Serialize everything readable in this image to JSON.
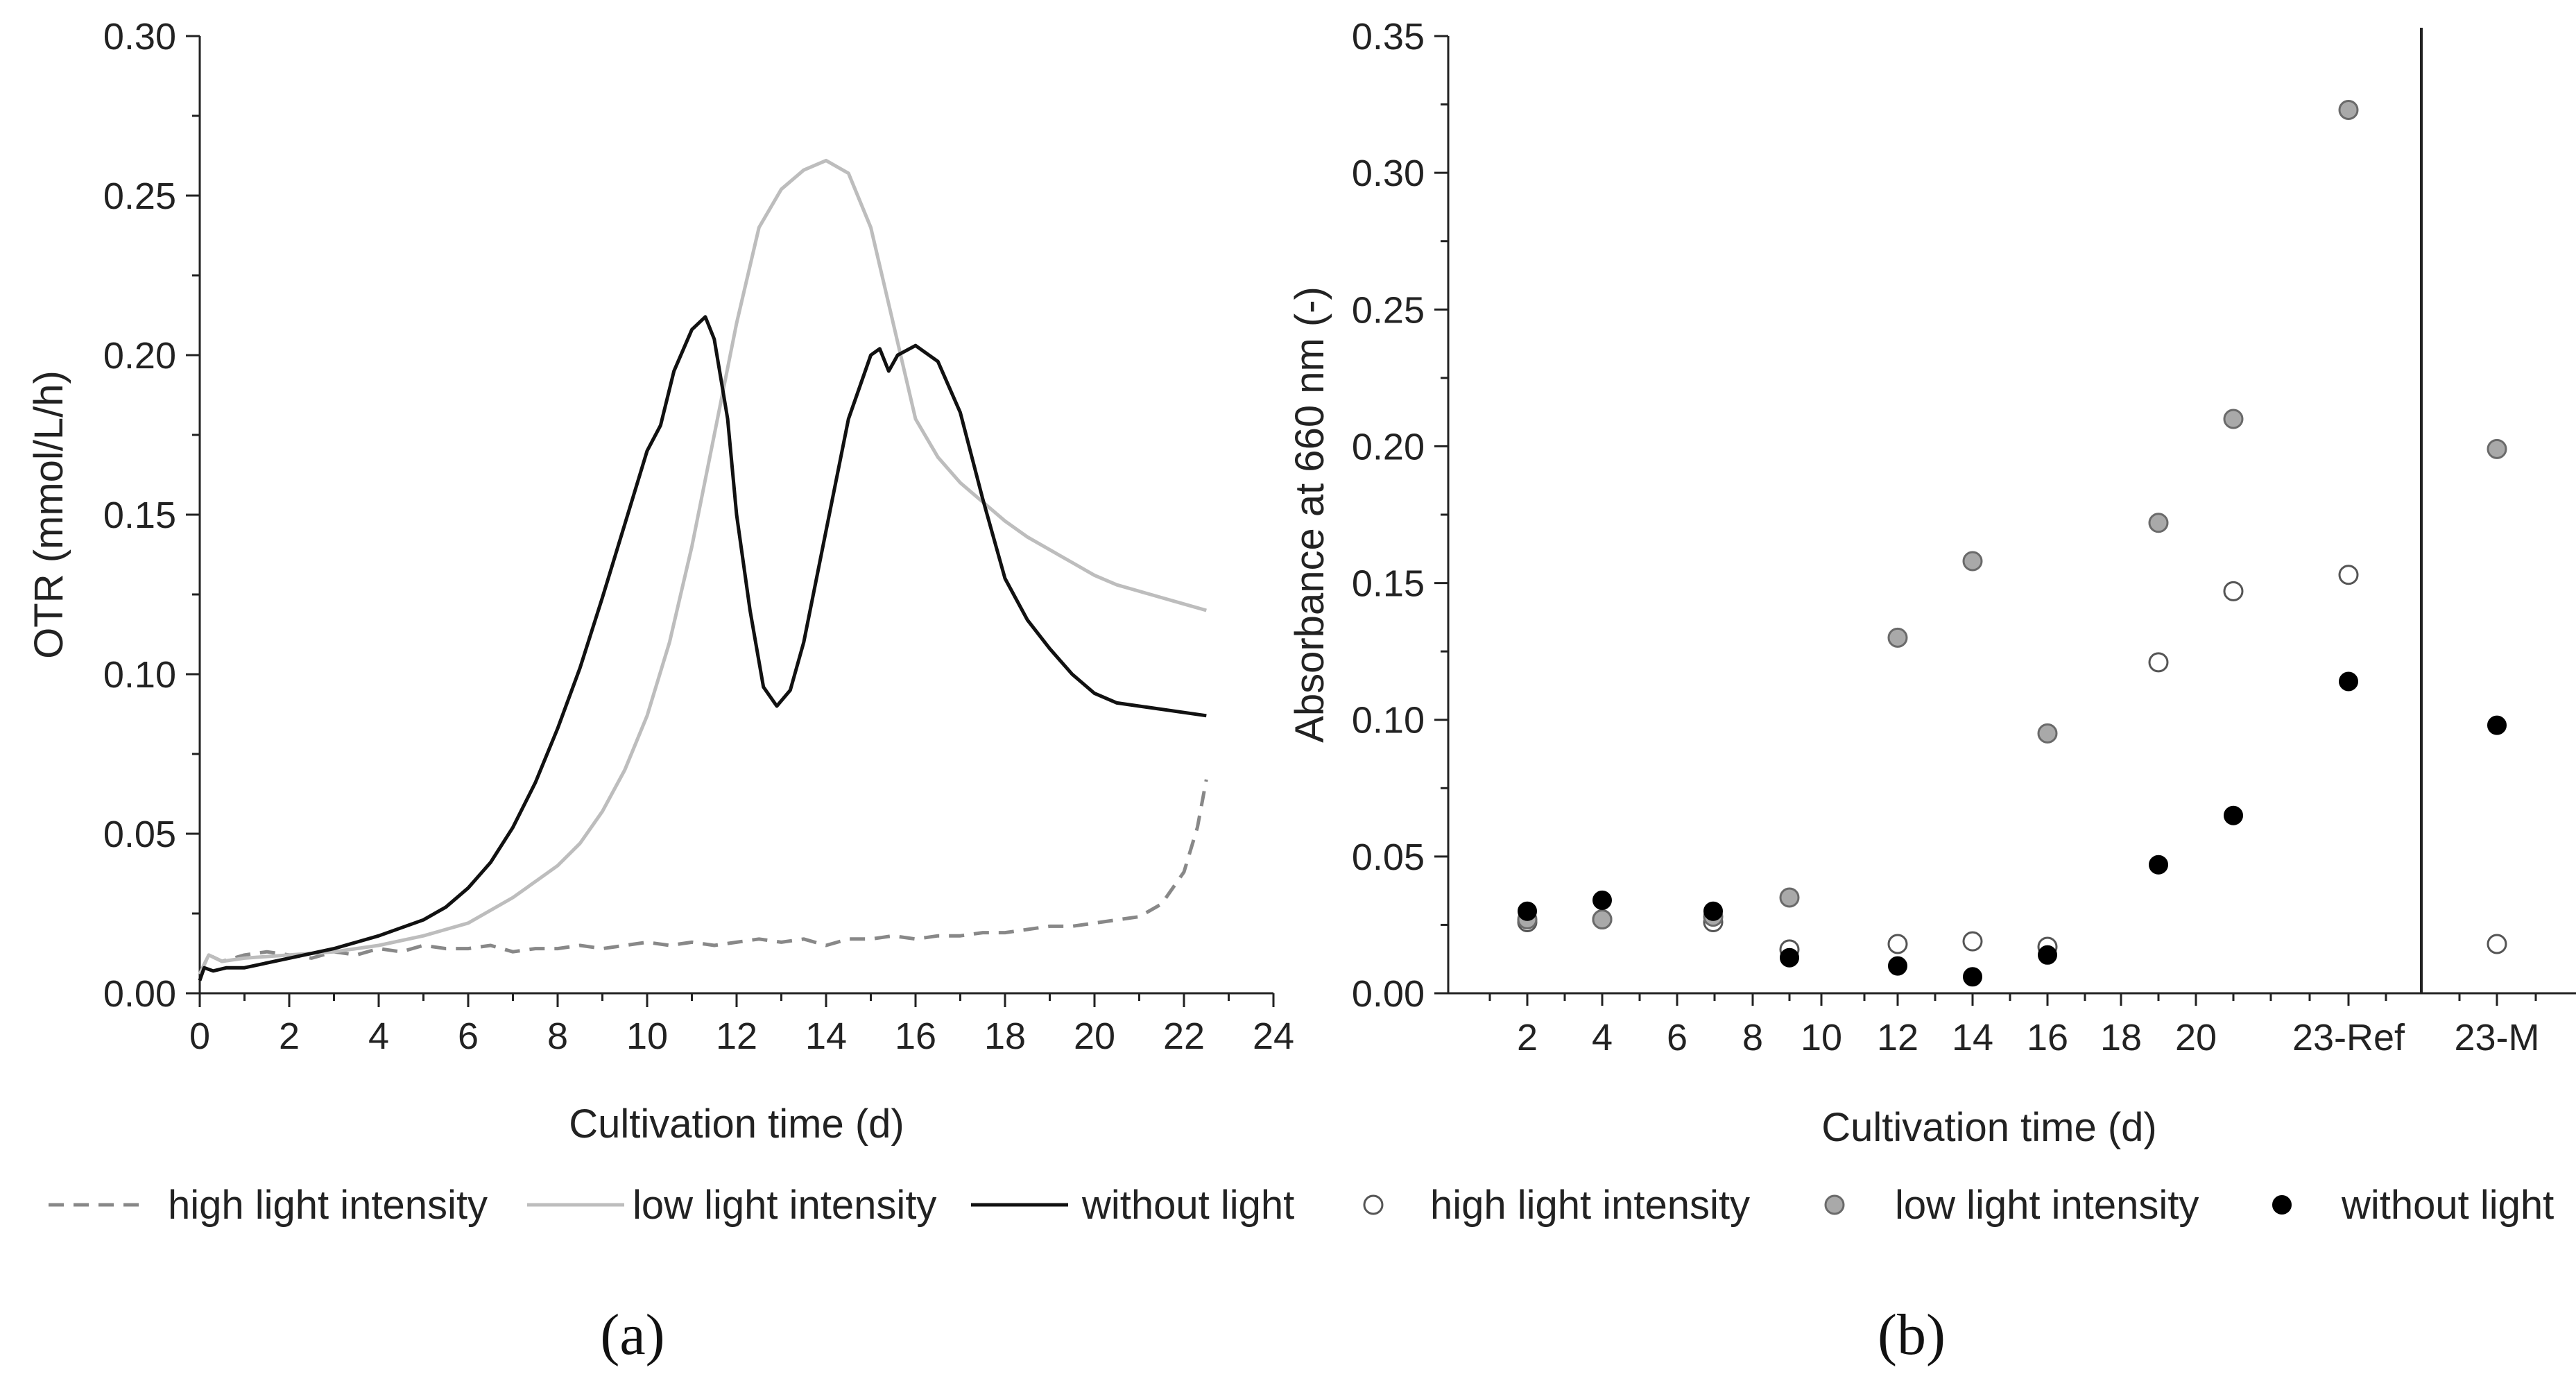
{
  "panels": [
    {
      "label": "(a)"
    },
    {
      "label": "(b)"
    }
  ],
  "chart_data": [
    {
      "type": "line",
      "xlabel": "Cultivation time (d)",
      "ylabel": "OTR (mmol/L/h)",
      "xlim": [
        0,
        24
      ],
      "ylim": [
        0,
        0.3
      ],
      "x_ticks": [
        "0",
        "2",
        "4",
        "6",
        "8",
        "10",
        "12",
        "14",
        "16",
        "18",
        "20",
        "22",
        "24"
      ],
      "y_ticks": [
        "0.00",
        "0.05",
        "0.10",
        "0.15",
        "0.20",
        "0.25",
        "0.30"
      ],
      "grid": false,
      "legend_position": "bottom",
      "series": [
        {
          "name": "high light intensity",
          "color": "#888888",
          "style": "dashed",
          "x": [
            0,
            0.2,
            0.5,
            1,
            1.5,
            2,
            2.5,
            3,
            3.5,
            4,
            4.5,
            5,
            5.5,
            6,
            6.5,
            7,
            7.5,
            8,
            8.5,
            9,
            9.5,
            10,
            10.5,
            11,
            11.5,
            12,
            12.5,
            13,
            13.5,
            14,
            14.5,
            15,
            15.5,
            16,
            16.5,
            17,
            17.5,
            18,
            18.5,
            19,
            19.5,
            20,
            20.5,
            21,
            21.5,
            22,
            22.3,
            22.5
          ],
          "y": [
            0.006,
            0.012,
            0.01,
            0.012,
            0.013,
            0.012,
            0.011,
            0.013,
            0.012,
            0.014,
            0.013,
            0.015,
            0.014,
            0.014,
            0.015,
            0.013,
            0.014,
            0.014,
            0.015,
            0.014,
            0.015,
            0.016,
            0.015,
            0.016,
            0.015,
            0.016,
            0.017,
            0.016,
            0.017,
            0.015,
            0.017,
            0.017,
            0.018,
            0.017,
            0.018,
            0.018,
            0.019,
            0.019,
            0.02,
            0.021,
            0.021,
            0.022,
            0.023,
            0.024,
            0.028,
            0.038,
            0.052,
            0.067
          ]
        },
        {
          "name": "low light intensity",
          "color": "#bdbdbd",
          "style": "solid",
          "x": [
            0,
            0.2,
            0.5,
            1,
            2,
            3,
            4,
            5,
            6,
            7,
            7.5,
            8,
            8.5,
            9,
            9.5,
            10,
            10.5,
            11,
            11.5,
            12,
            12.5,
            13,
            13.5,
            14,
            14.5,
            15,
            15.5,
            16,
            16.5,
            17,
            17.5,
            18,
            18.5,
            19,
            19.5,
            20,
            20.5,
            21,
            21.5,
            22,
            22.5
          ],
          "y": [
            0.006,
            0.012,
            0.01,
            0.011,
            0.012,
            0.013,
            0.015,
            0.018,
            0.022,
            0.03,
            0.035,
            0.04,
            0.047,
            0.057,
            0.07,
            0.087,
            0.11,
            0.14,
            0.175,
            0.21,
            0.24,
            0.252,
            0.258,
            0.261,
            0.257,
            0.24,
            0.21,
            0.18,
            0.168,
            0.16,
            0.154,
            0.148,
            0.143,
            0.139,
            0.135,
            0.131,
            0.128,
            0.126,
            0.124,
            0.122,
            0.12
          ]
        },
        {
          "name": "without light",
          "color": "#111111",
          "style": "solid",
          "x": [
            0,
            0.1,
            0.3,
            0.6,
            1,
            2,
            3,
            4,
            5,
            5.5,
            6,
            6.5,
            7,
            7.5,
            8,
            8.5,
            9,
            9.5,
            10,
            10.3,
            10.6,
            11,
            11.3,
            11.5,
            11.8,
            12,
            12.3,
            12.6,
            12.9,
            13.2,
            13.5,
            14,
            14.5,
            15,
            15.2,
            15.4,
            15.6,
            16,
            16.5,
            17,
            17.5,
            18,
            18.5,
            19,
            19.5,
            20,
            20.5,
            21,
            22,
            22.5
          ],
          "y": [
            0.004,
            0.008,
            0.007,
            0.008,
            0.008,
            0.011,
            0.014,
            0.018,
            0.023,
            0.027,
            0.033,
            0.041,
            0.052,
            0.066,
            0.083,
            0.102,
            0.124,
            0.147,
            0.17,
            0.178,
            0.195,
            0.208,
            0.212,
            0.205,
            0.18,
            0.15,
            0.12,
            0.096,
            0.09,
            0.095,
            0.11,
            0.145,
            0.18,
            0.2,
            0.202,
            0.195,
            0.2,
            0.203,
            0.198,
            0.182,
            0.155,
            0.13,
            0.117,
            0.108,
            0.1,
            0.094,
            0.091,
            0.09,
            0.088,
            0.087
          ]
        }
      ]
    },
    {
      "type": "scatter",
      "xlabel": "Cultivation time (d)",
      "ylabel": "Absorbance at 660 nm (-)",
      "x_tick_labels": [
        "2",
        "4",
        "6",
        "8",
        "10",
        "12",
        "14",
        "16",
        "18",
        "20",
        "23-Ref",
        "23-M"
      ],
      "y_ticks": [
        "0.00",
        "0.05",
        "0.10",
        "0.15",
        "0.20",
        "0.25",
        "0.30",
        "0.35"
      ],
      "ylim": [
        0,
        0.35
      ],
      "grid": false,
      "legend_position": "bottom",
      "series": [
        {
          "name": "high light intensity",
          "marker": "open-circle",
          "color": "#ffffff",
          "x": [
            "2",
            "4",
            "7",
            "9",
            "12",
            "14",
            "16",
            "19",
            "21",
            "23-Ref",
            "23-M"
          ],
          "y": [
            0.026,
            0.027,
            0.026,
            0.016,
            0.018,
            0.019,
            0.017,
            0.121,
            0.147,
            0.153,
            0.018
          ]
        },
        {
          "name": "low light intensity",
          "marker": "grey-circle",
          "color": "#a9a9a9",
          "x": [
            "2",
            "4",
            "7",
            "9",
            "12",
            "14",
            "16",
            "19",
            "21",
            "23-Ref",
            "23-M"
          ],
          "y": [
            0.027,
            0.027,
            0.028,
            0.035,
            0.13,
            0.158,
            0.095,
            0.172,
            0.21,
            0.323,
            0.199
          ]
        },
        {
          "name": "without light",
          "marker": "black-circle",
          "color": "#000000",
          "x": [
            "2",
            "4",
            "7",
            "9",
            "12",
            "14",
            "16",
            "19",
            "21",
            "23-Ref",
            "23-M"
          ],
          "y": [
            0.03,
            0.034,
            0.03,
            0.013,
            0.01,
            0.006,
            0.014,
            0.047,
            0.065,
            0.114,
            0.098
          ]
        }
      ]
    }
  ]
}
